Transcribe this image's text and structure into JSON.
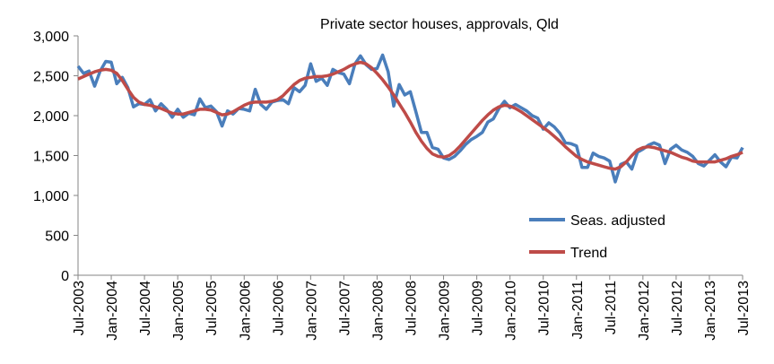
{
  "chart_data": {
    "type": "line",
    "title": "Private sector houses, approvals, Qld",
    "xlabel": "",
    "ylabel": "",
    "ylim": [
      0,
      3000
    ],
    "yticks": [
      0,
      500,
      1000,
      1500,
      2000,
      2500,
      3000
    ],
    "ytick_labels": [
      "0",
      "500",
      "1,000",
      "1,500",
      "2,000",
      "2,500",
      "3,000"
    ],
    "x_start": "Jul-2003",
    "x_end": "Jul-2013",
    "x_frequency": "monthly",
    "xtick_labels": [
      "Jul-2003",
      "Jan-2004",
      "Jul-2004",
      "Jan-2005",
      "Jul-2005",
      "Jan-2006",
      "Jul-2006",
      "Jan-2007",
      "Jul-2007",
      "Jan-2008",
      "Jul-2008",
      "Jan-2009",
      "Jul-2009",
      "Jan-2010",
      "Jul-2010",
      "Jan-2011",
      "Jul-2011",
      "Jan-2012",
      "Jul-2012",
      "Jan-2013",
      "Jul-2013"
    ],
    "grid": false,
    "legend_position": "bottom-right",
    "series": [
      {
        "name": "Seas. adjusted",
        "color": "#4a7ebb",
        "values": [
          2620,
          2530,
          2560,
          2370,
          2560,
          2680,
          2670,
          2400,
          2480,
          2350,
          2110,
          2150,
          2140,
          2200,
          2060,
          2150,
          2080,
          1980,
          2080,
          1980,
          2030,
          2010,
          2210,
          2100,
          2120,
          2050,
          1870,
          2060,
          2020,
          2090,
          2080,
          2060,
          2330,
          2140,
          2080,
          2170,
          2190,
          2200,
          2150,
          2350,
          2300,
          2380,
          2650,
          2430,
          2470,
          2380,
          2580,
          2540,
          2520,
          2400,
          2650,
          2750,
          2640,
          2580,
          2590,
          2760,
          2550,
          2120,
          2390,
          2260,
          2300,
          2050,
          1790,
          1790,
          1600,
          1580,
          1470,
          1450,
          1490,
          1560,
          1640,
          1700,
          1740,
          1790,
          1920,
          1960,
          2090,
          2180,
          2100,
          2140,
          2100,
          2060,
          2000,
          1970,
          1830,
          1910,
          1860,
          1780,
          1660,
          1650,
          1620,
          1350,
          1350,
          1530,
          1490,
          1470,
          1430,
          1170,
          1390,
          1420,
          1330,
          1540,
          1580,
          1630,
          1660,
          1630,
          1400,
          1580,
          1630,
          1570,
          1540,
          1490,
          1400,
          1370,
          1440,
          1510,
          1420,
          1360,
          1480,
          1470,
          1600
        ]
      },
      {
        "name": "Trend",
        "color": "#be4b48",
        "values": [
          2460,
          2490,
          2520,
          2550,
          2570,
          2580,
          2570,
          2530,
          2440,
          2330,
          2230,
          2170,
          2140,
          2130,
          2110,
          2090,
          2060,
          2030,
          2020,
          2020,
          2040,
          2060,
          2080,
          2080,
          2070,
          2040,
          2010,
          2020,
          2050,
          2090,
          2130,
          2160,
          2170,
          2170,
          2170,
          2180,
          2200,
          2250,
          2320,
          2390,
          2440,
          2470,
          2480,
          2490,
          2490,
          2500,
          2520,
          2550,
          2580,
          2620,
          2650,
          2670,
          2650,
          2600,
          2530,
          2450,
          2360,
          2260,
          2150,
          2040,
          1920,
          1790,
          1680,
          1590,
          1520,
          1490,
          1480,
          1500,
          1550,
          1620,
          1700,
          1780,
          1860,
          1940,
          2010,
          2070,
          2110,
          2130,
          2120,
          2090,
          2050,
          2000,
          1950,
          1900,
          1850,
          1800,
          1740,
          1680,
          1610,
          1550,
          1490,
          1450,
          1420,
          1400,
          1380,
          1360,
          1340,
          1330,
          1360,
          1420,
          1500,
          1570,
          1600,
          1610,
          1600,
          1580,
          1560,
          1540,
          1510,
          1480,
          1460,
          1430,
          1420,
          1420,
          1420,
          1420,
          1440,
          1460,
          1490,
          1510,
          1540
        ]
      }
    ]
  }
}
